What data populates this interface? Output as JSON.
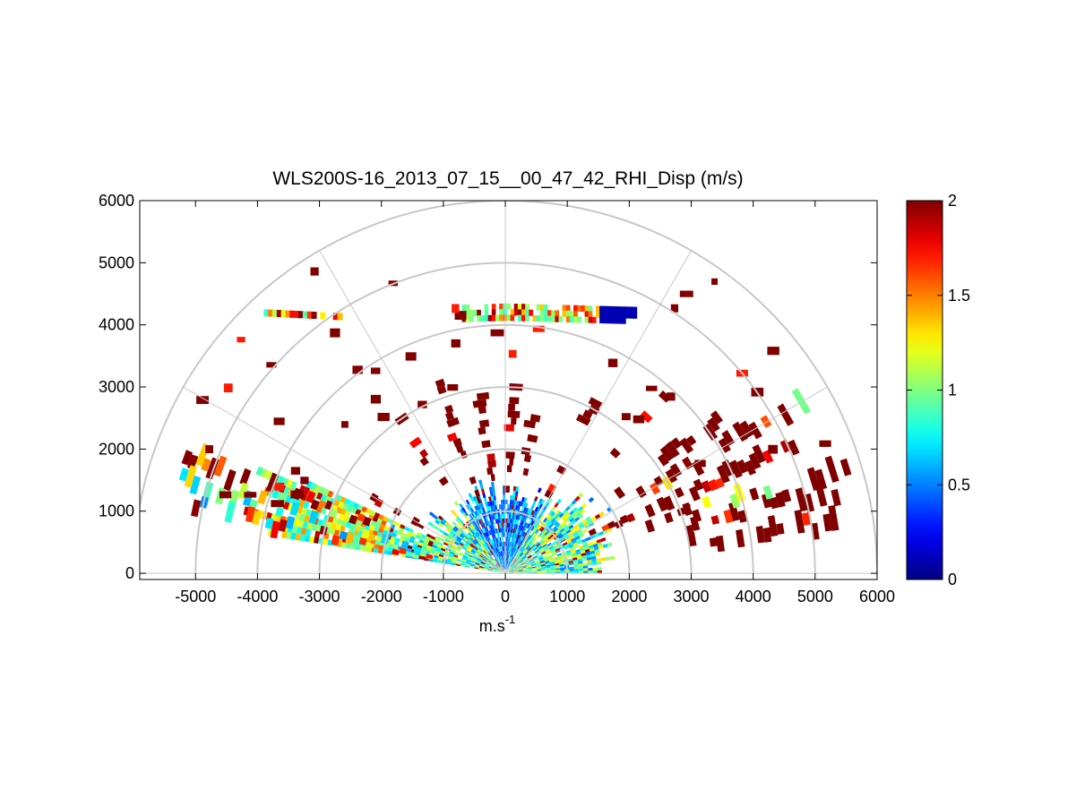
{
  "chart_data": {
    "type": "heatmap",
    "subtype": "polar RHI scan (half-polar wedge)",
    "title": "WLS200S-16_2013_07_15__00_47_42_RHI_Disp (m/s)",
    "xlabel": "m.s",
    "xlabel_superscript": "-1",
    "ylabel": "",
    "xlim": [
      -5900,
      6000
    ],
    "ylim": [
      -100,
      6000
    ],
    "x_ticks": [
      "-5000",
      "-4000",
      "-3000",
      "-2000",
      "-1000",
      "0",
      "1000",
      "2000",
      "3000",
      "4000",
      "5000",
      "6000"
    ],
    "x_tick_values": [
      -5000,
      -4000,
      -3000,
      -2000,
      -1000,
      0,
      1000,
      2000,
      3000,
      4000,
      5000,
      6000
    ],
    "y_ticks": [
      "0",
      "1000",
      "2000",
      "3000",
      "4000",
      "5000",
      "6000"
    ],
    "y_tick_values": [
      0,
      1000,
      2000,
      3000,
      4000,
      5000,
      6000
    ],
    "polar_grid": {
      "range_rings": [
        1000,
        2000,
        3000,
        4000,
        5000,
        6000
      ],
      "spokes_deg": [
        0,
        30,
        60,
        90,
        120,
        150,
        180
      ]
    },
    "colorbar": {
      "min": 0,
      "max": 2,
      "ticks": [
        "0",
        "0.5",
        "1",
        "1.5",
        "2"
      ],
      "tick_values": [
        0,
        0.5,
        1,
        1.5,
        2
      ],
      "colormap": "jet"
    },
    "colors": {
      "grid": "#c8c8c8",
      "axes": "#000000",
      "background": "#ffffff"
    },
    "sectors": [
      {
        "az_deg": 9,
        "start_range": 2900,
        "end_range": 5400,
        "value_profile": "high"
      },
      {
        "az_deg": 14,
        "start_range": 3000,
        "end_range": 5500,
        "value_profile": "high"
      },
      {
        "az_deg": 18,
        "start_range": 2400,
        "end_range": 5800,
        "value_profile": "mixed-high"
      },
      {
        "az_deg": 24,
        "start_range": 1500,
        "end_range": 5200,
        "value_profile": "high"
      },
      {
        "az_deg": 30,
        "start_range": 2500,
        "end_range": 5600,
        "value_profile": "mixed-high"
      },
      {
        "az_deg": 36,
        "start_range": 2200,
        "end_range": 4200,
        "value_profile": "high"
      },
      {
        "az_deg": 48,
        "start_range": 1800,
        "end_range": 3800,
        "value_profile": "high"
      },
      {
        "az_deg": 62,
        "start_range": 1400,
        "end_range": 3100,
        "value_profile": "high"
      },
      {
        "az_deg": 80,
        "start_range": 1500,
        "end_range": 3000,
        "value_profile": "high"
      },
      {
        "az_deg": 88,
        "start_range": 1300,
        "end_range": 3000,
        "value_profile": "high"
      },
      {
        "az_deg": 98,
        "start_range": 1500,
        "end_range": 3000,
        "value_profile": "high"
      },
      {
        "az_deg": 110,
        "start_range": 1200,
        "end_range": 3200,
        "value_profile": "high"
      },
      {
        "az_deg": 125,
        "start_range": 1400,
        "end_range": 3100,
        "value_profile": "high"
      },
      {
        "az_deg": 150,
        "start_range": 1400,
        "end_range": 2500,
        "value_profile": "high"
      },
      {
        "az_deg": 160,
        "start_range": 2000,
        "end_range": 5500,
        "value_profile": "mixed-high"
      },
      {
        "az_deg": 164,
        "start_range": 1300,
        "end_range": 5400,
        "value_profile": "mid"
      },
      {
        "az_deg": 168,
        "start_range": 1200,
        "end_range": 5200,
        "value_profile": "mixed"
      }
    ],
    "aerosol_layer_band": {
      "height": 4300,
      "x_from": -700,
      "x_to": 2100
    },
    "upper_left_band": {
      "height": 4250,
      "x_from": -3900,
      "x_to": -2600
    }
  }
}
